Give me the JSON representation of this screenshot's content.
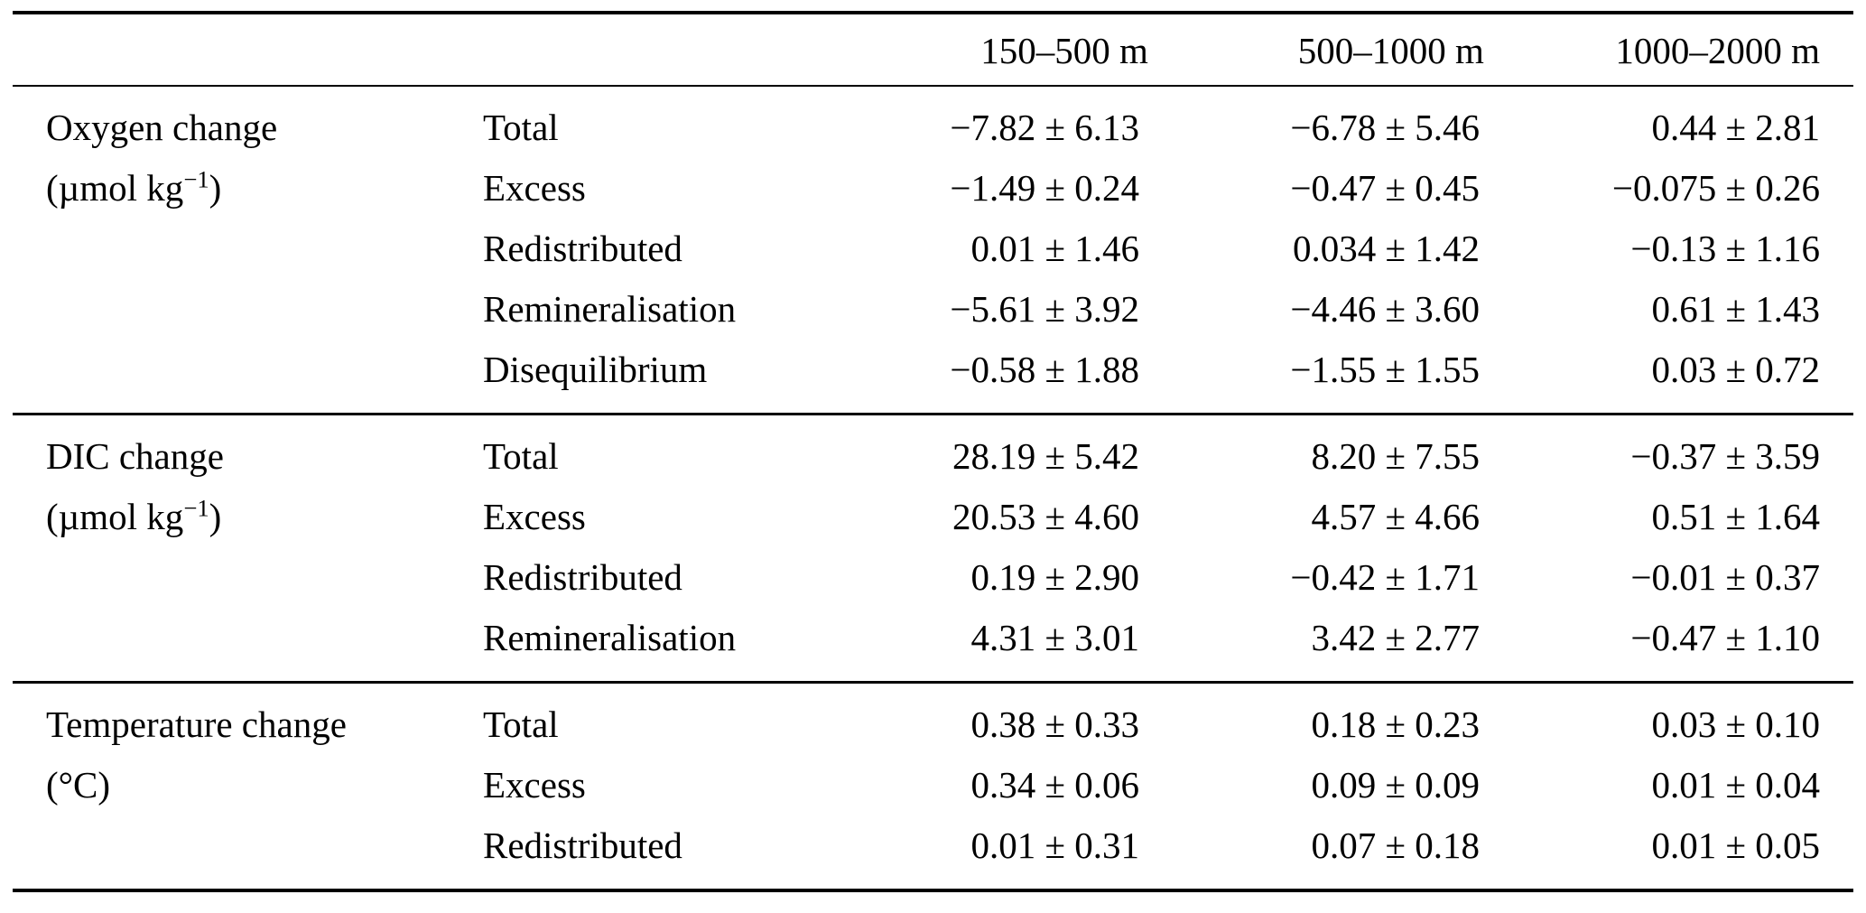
{
  "header": {
    "columns": [
      "150–500 m",
      "500–1000 m",
      "1000–2000 m"
    ]
  },
  "sections": [
    {
      "group": {
        "line1": "Oxygen change",
        "unit_pre": "(µmol kg",
        "unit_sup": "−1",
        "unit_post": ")"
      },
      "rows": [
        {
          "label": "Total",
          "values": [
            "−7.82 ± 6.13",
            "−6.78 ± 5.46",
            "0.44 ± 2.81"
          ]
        },
        {
          "label": "Excess",
          "values": [
            "−1.49 ± 0.24",
            "−0.47 ± 0.45",
            "−0.075 ± 0.26"
          ]
        },
        {
          "label": "Redistributed",
          "values": [
            "0.01 ± 1.46",
            "0.034 ± 1.42",
            "−0.13 ± 1.16"
          ]
        },
        {
          "label": "Remineralisation",
          "values": [
            "−5.61 ± 3.92",
            "−4.46 ± 3.60",
            "0.61 ± 1.43"
          ]
        },
        {
          "label": "Disequilibrium",
          "values": [
            "−0.58 ± 1.88",
            "−1.55 ± 1.55",
            "0.03 ± 0.72"
          ]
        }
      ]
    },
    {
      "group": {
        "line1": "DIC change",
        "unit_pre": "(µmol kg",
        "unit_sup": "−1",
        "unit_post": ")"
      },
      "rows": [
        {
          "label": "Total",
          "values": [
            "28.19 ± 5.42",
            "8.20 ± 7.55",
            "−0.37 ± 3.59"
          ]
        },
        {
          "label": "Excess",
          "values": [
            "20.53 ± 4.60",
            "4.57 ± 4.66",
            "0.51 ± 1.64"
          ]
        },
        {
          "label": "Redistributed",
          "values": [
            "0.19 ± 2.90",
            "−0.42 ± 1.71",
            "−0.01 ± 0.37"
          ]
        },
        {
          "label": "Remineralisation",
          "values": [
            "4.31 ± 3.01",
            "3.42 ± 2.77",
            "−0.47 ± 1.10"
          ]
        }
      ]
    },
    {
      "group": {
        "line1": "Temperature change",
        "unit_pre": "(°C)",
        "unit_sup": "",
        "unit_post": ""
      },
      "rows": [
        {
          "label": "Total",
          "values": [
            "0.38 ± 0.33",
            "0.18 ± 0.23",
            "0.03 ± 0.10"
          ]
        },
        {
          "label": "Excess",
          "values": [
            "0.34 ± 0.06",
            "0.09 ± 0.09",
            "0.01 ± 0.04"
          ]
        },
        {
          "label": "Redistributed",
          "values": [
            "0.01 ± 0.31",
            "0.07 ± 0.18",
            "0.01 ± 0.05"
          ]
        }
      ]
    }
  ]
}
